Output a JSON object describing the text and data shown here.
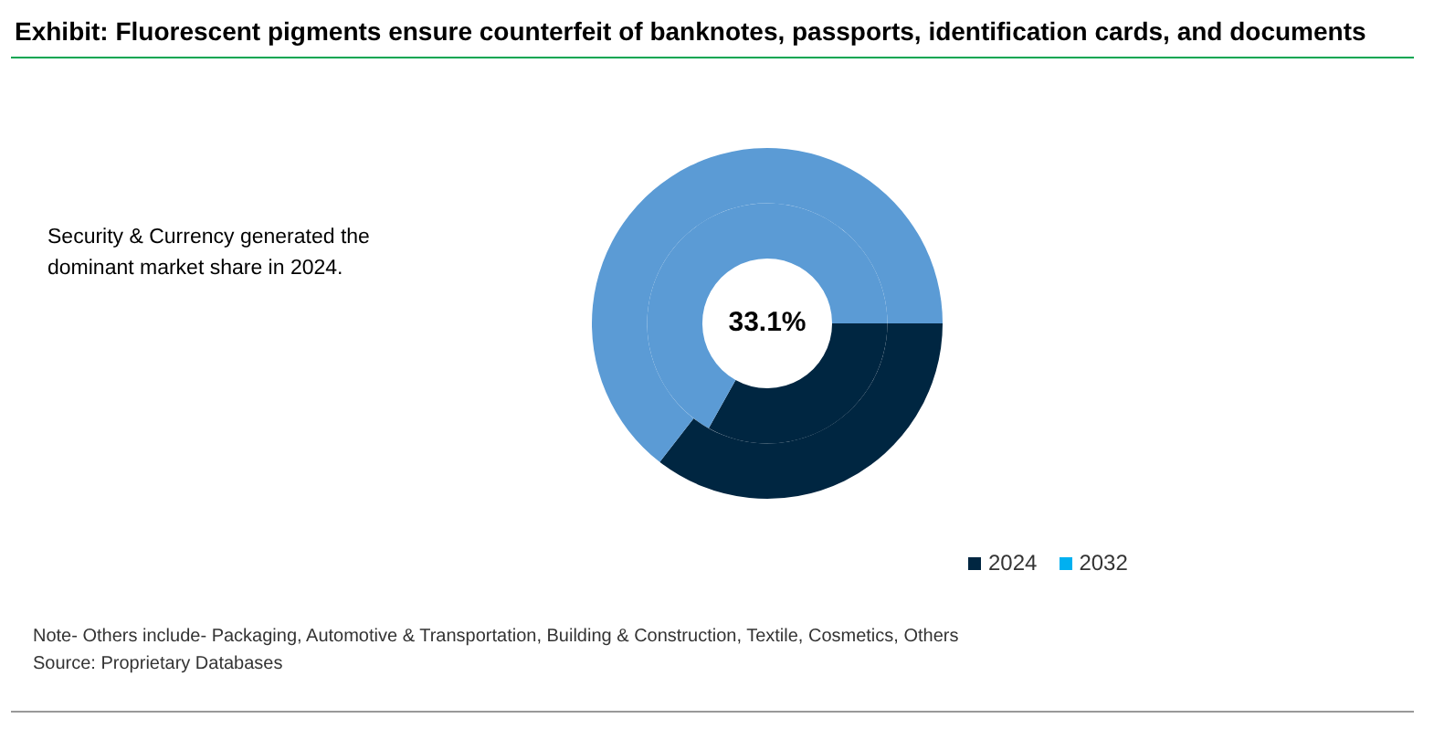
{
  "chart_data": {
    "type": "donut",
    "title": "Exhibit: Fluorescent pigments ensure counterfeit of banknotes, passports, identification cards, and documents",
    "categories": [
      null,
      null
    ],
    "series": [
      {
        "name": "2024",
        "color": "#002641",
        "values": [
          33.1,
          66.9
        ],
        "colors": [
          "#002641",
          "#5b9bd5"
        ]
      },
      {
        "name": "2032",
        "color": "#00b0f0",
        "values": [
          35.5,
          64.5
        ],
        "colors": [
          "#002641",
          "#5b9bd5"
        ]
      }
    ],
    "legend": "bottom right",
    "annotations": [
      "Security & Currency generated  the dominant market share in 2024.",
      "33.1%",
      "Note- Others include- Packaging, Automotive & Transportation, Building & Construction, Textile, Cosmetics, Others",
      "Source: Proprietary Databases"
    ]
  }
}
